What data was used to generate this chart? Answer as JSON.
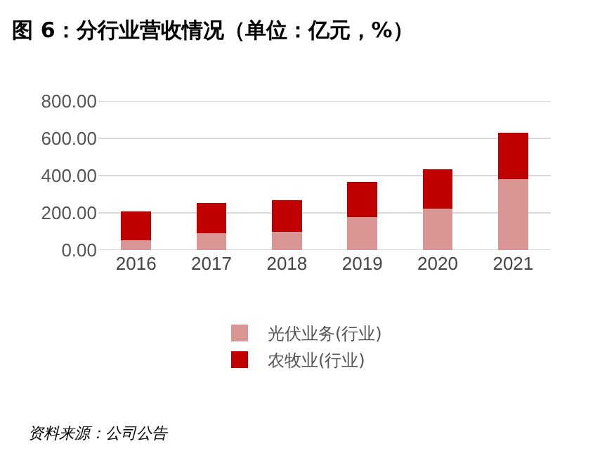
{
  "chart_data": {
    "type": "bar",
    "title": "图 6：分行业营收情况（单位：亿元，%）",
    "stacked": true,
    "categories": [
      "2016",
      "2017",
      "2018",
      "2019",
      "2020",
      "2021"
    ],
    "series": [
      {
        "name": "光伏业务(行业)",
        "color": "#d99694",
        "values": [
          54,
          91,
          98,
          176,
          223,
          381
        ]
      },
      {
        "name": "农牧业(行业)",
        "color": "#c00000",
        "values": [
          153,
          163,
          169,
          189,
          212,
          248
        ]
      }
    ],
    "ylim": [
      0,
      800
    ],
    "yticks": [
      {
        "value": 0,
        "label": "0.00"
      },
      {
        "value": 200,
        "label": "200.00"
      },
      {
        "value": 400,
        "label": "400.00"
      },
      {
        "value": 600,
        "label": "600.00"
      },
      {
        "value": 800,
        "label": "800.00"
      }
    ],
    "grid": "y",
    "legend": "bottom",
    "annotations": [
      "资料来源：公司公告"
    ]
  }
}
